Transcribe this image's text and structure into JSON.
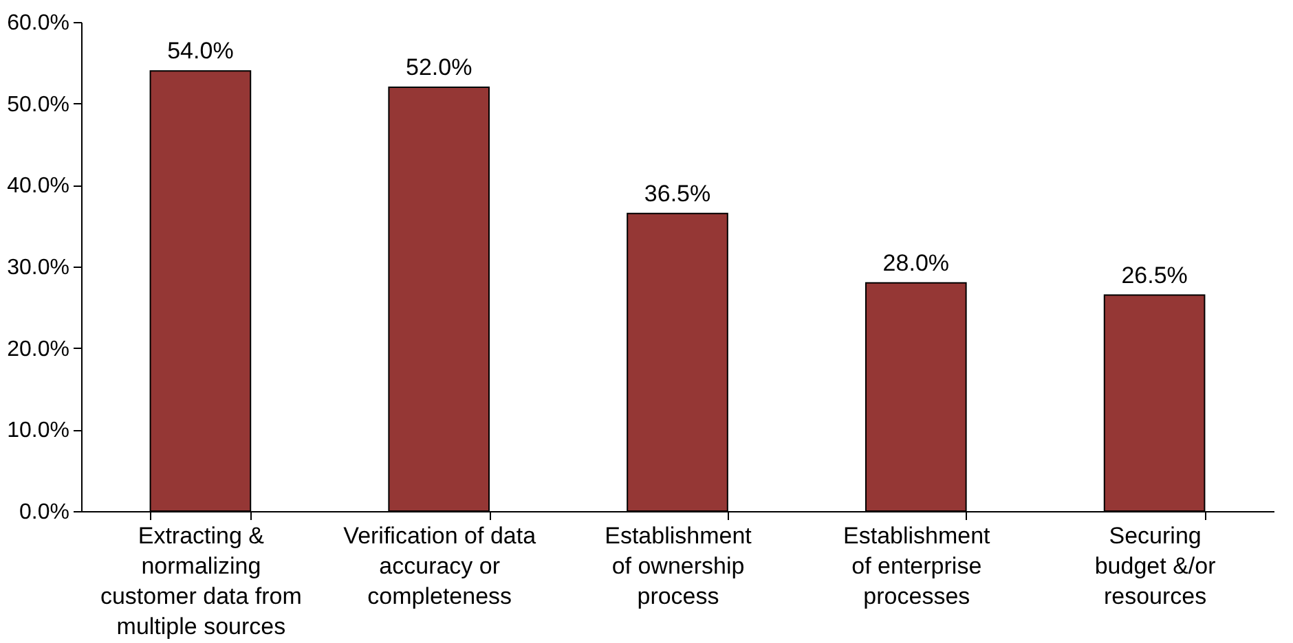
{
  "chart_data": {
    "type": "bar",
    "categories": [
      "Extracting &\nnormalizing\ncustomer data from\nmultiple sources",
      "Verification of data\naccuracy or\ncompleteness",
      "Establishment\nof ownership\nprocess",
      "Establishment\nof enterprise\nprocesses",
      "Securing\nbudget &/or\nresources"
    ],
    "values": [
      54.0,
      52.0,
      36.5,
      28.0,
      26.5
    ],
    "value_labels": [
      "54.0%",
      "52.0%",
      "36.5%",
      "28.0%",
      "26.5%"
    ],
    "color": "#953735",
    "ylim": [
      0,
      60
    ],
    "yticks": [
      {
        "value": 0,
        "label": "0.0%"
      },
      {
        "value": 10,
        "label": "10.0%"
      },
      {
        "value": 20,
        "label": "20.0%"
      },
      {
        "value": 30,
        "label": "30.0%"
      },
      {
        "value": 40,
        "label": "40.0%"
      },
      {
        "value": 50,
        "label": "50.0%"
      },
      {
        "value": 60,
        "label": "60.0%"
      }
    ],
    "grid": false
  }
}
